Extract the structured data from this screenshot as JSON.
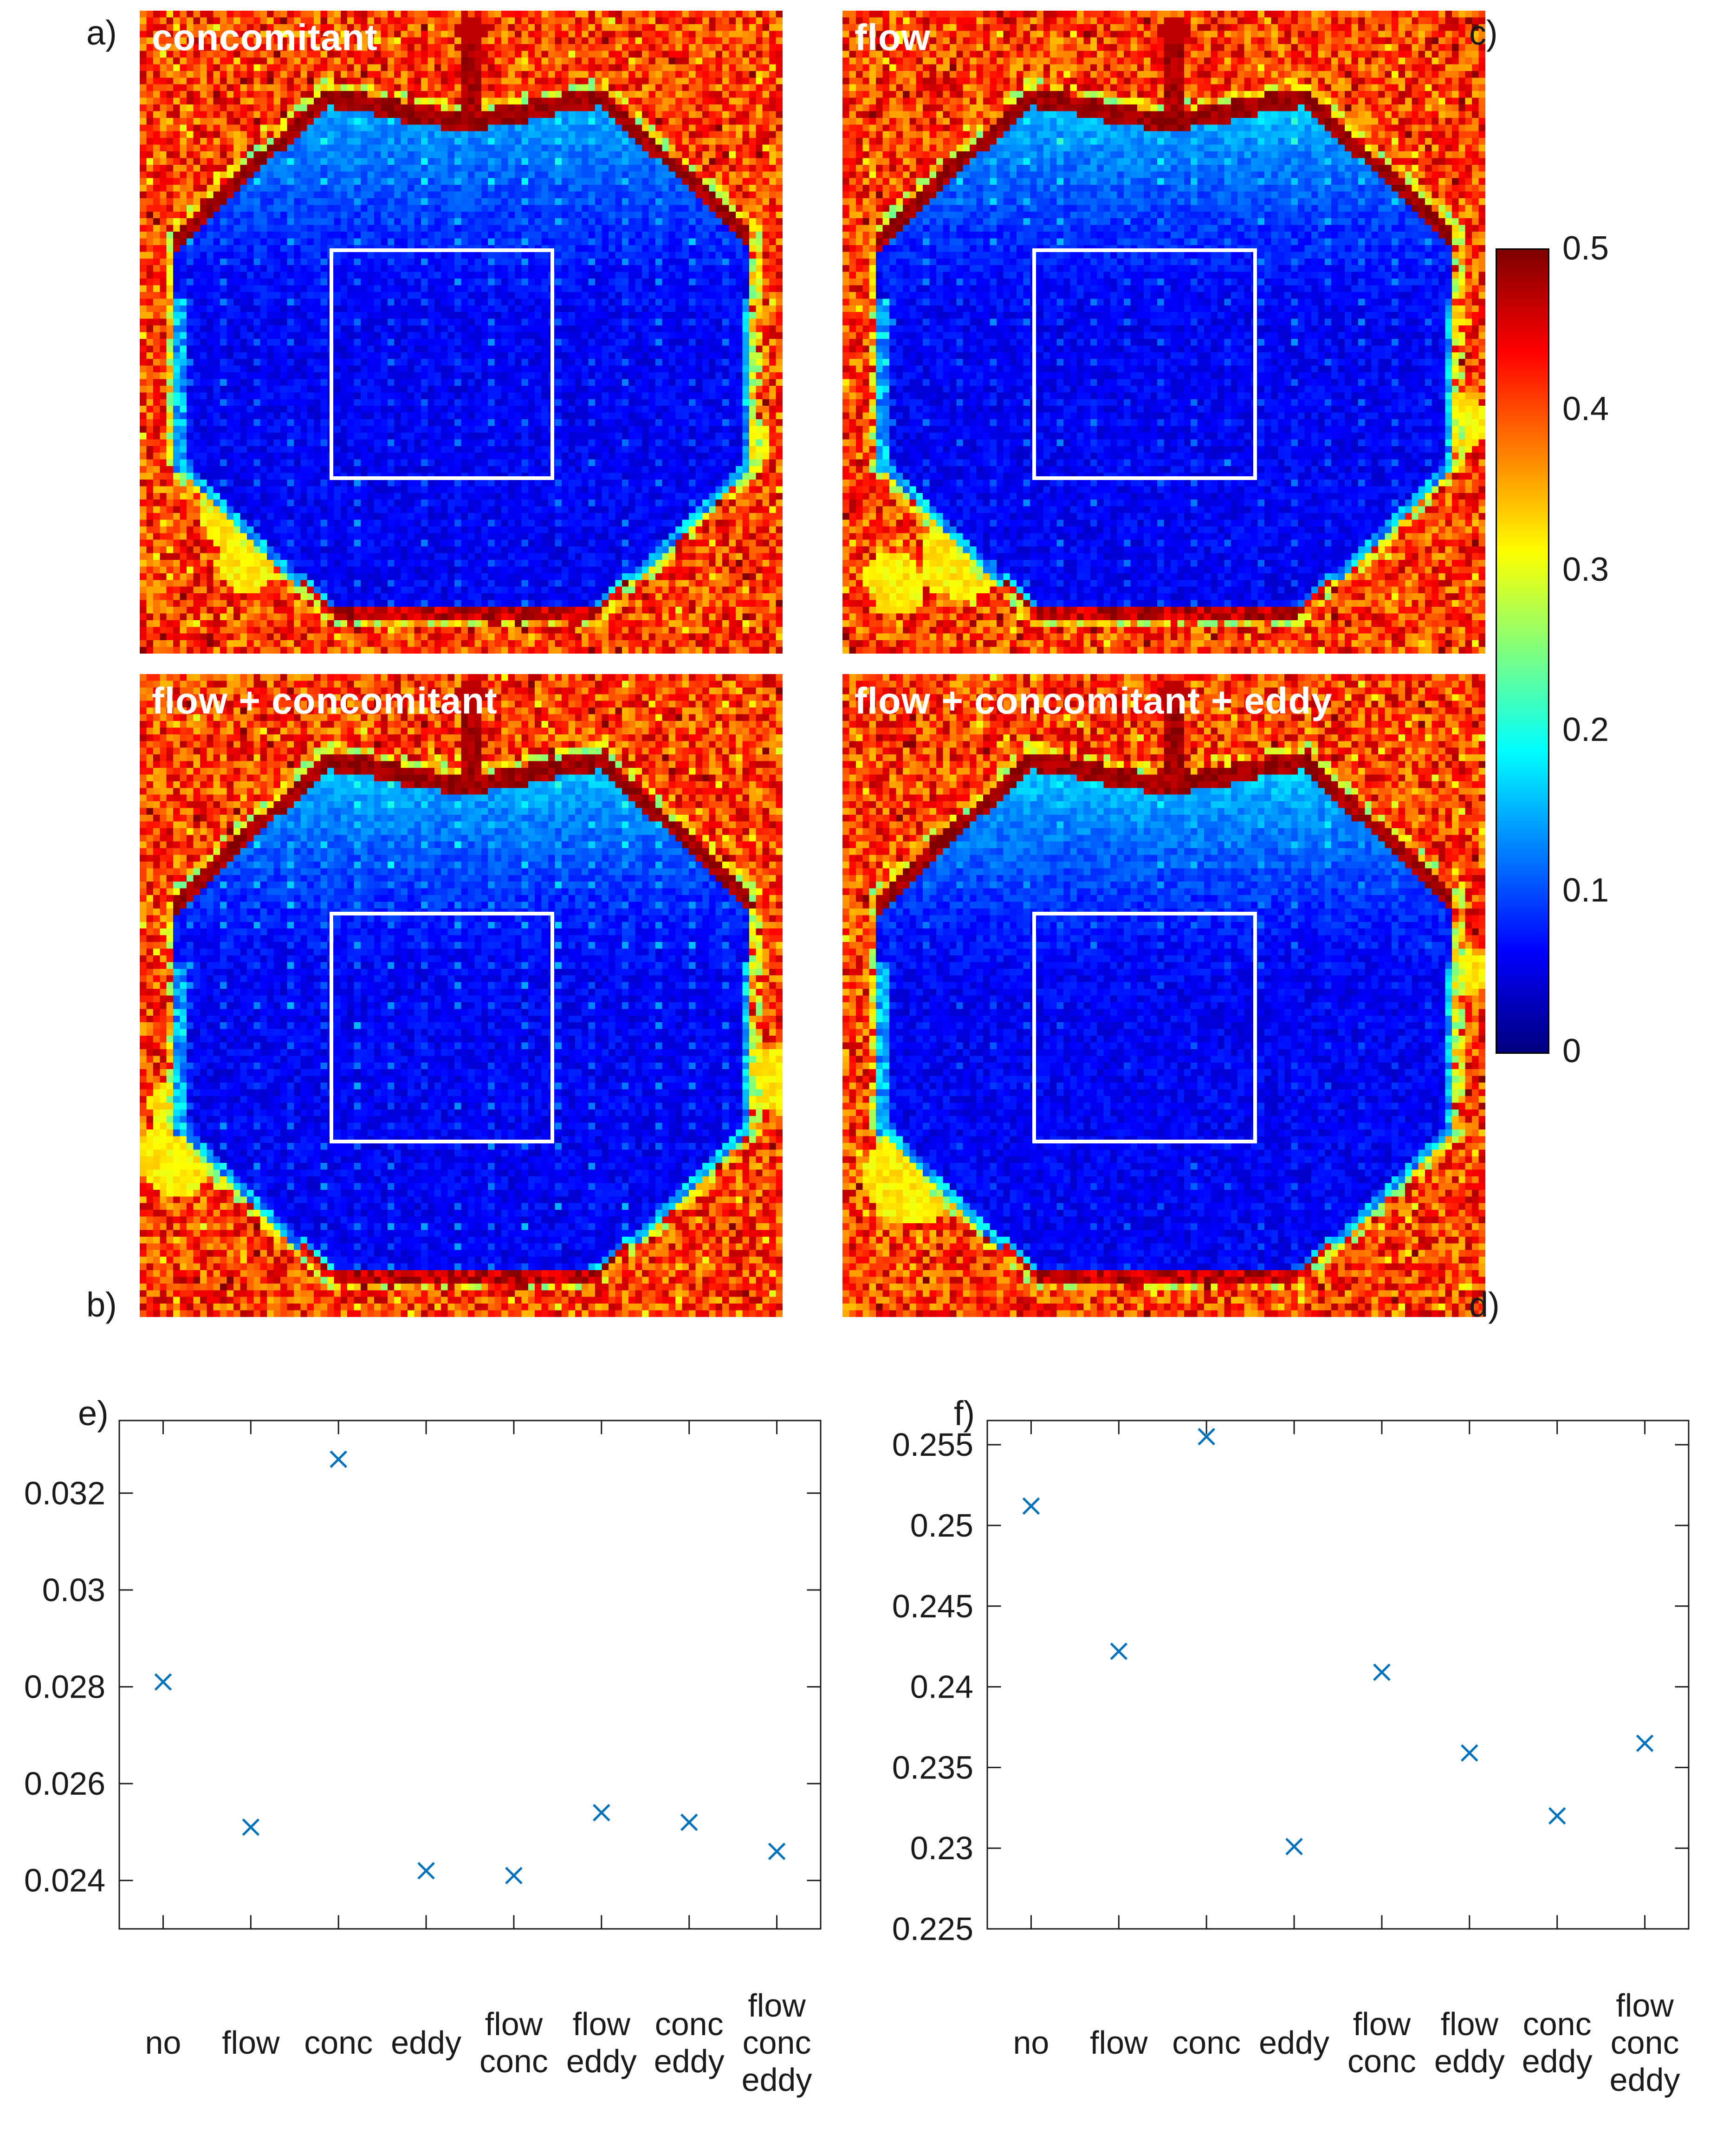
{
  "figure": {
    "heatmap_panels": [
      {
        "letter": "a)",
        "label": "concomitant"
      },
      {
        "letter": "c)",
        "label": "flow"
      },
      {
        "letter": "b)",
        "label": "flow + concomitant"
      },
      {
        "letter": "d)",
        "label": "flow + concomitant + eddy"
      }
    ],
    "colorbar": {
      "min": 0,
      "max": 0.5,
      "colormap": "jet",
      "tick_values": [
        0,
        0.1,
        0.2,
        0.3,
        0.4,
        0.5
      ],
      "tick_labels": [
        "0",
        "0.1",
        "0.2",
        "0.3",
        "0.4",
        "0.5"
      ]
    }
  },
  "chart_data": [
    {
      "type": "heatmap",
      "panels": [
        "concomitant",
        "flow",
        "flow + concomitant",
        "flow + concomitant + eddy"
      ],
      "panel_letters": [
        "a)",
        "c)",
        "b)",
        "d)"
      ],
      "value_range": [
        0,
        0.5
      ],
      "colormap": "jet",
      "annotation": "white square ROI outline centered in each phantom"
    },
    {
      "type": "scatter",
      "panel_letter": "e)",
      "marker": "x",
      "marker_color": "#0072BD",
      "categories": [
        [
          "no"
        ],
        [
          "flow"
        ],
        [
          "conc"
        ],
        [
          "eddy"
        ],
        [
          "flow",
          "conc"
        ],
        [
          "flow",
          "eddy"
        ],
        [
          "conc",
          "eddy"
        ],
        [
          "flow",
          "conc",
          "eddy"
        ]
      ],
      "values": [
        0.0281,
        0.0251,
        0.0327,
        0.0242,
        0.0241,
        0.0254,
        0.0252,
        0.0246
      ],
      "ylim": [
        0.023,
        0.0335
      ],
      "ytick_values": [
        0.024,
        0.026,
        0.028,
        0.03,
        0.032
      ],
      "ytick_labels": [
        "0.024",
        "0.026",
        "0.028",
        "0.03",
        "0.032"
      ],
      "grid": false,
      "legend": null
    },
    {
      "type": "scatter",
      "panel_letter": "f)",
      "marker": "x",
      "marker_color": "#0072BD",
      "categories": [
        [
          "no"
        ],
        [
          "flow"
        ],
        [
          "conc"
        ],
        [
          "eddy"
        ],
        [
          "flow",
          "conc"
        ],
        [
          "flow",
          "eddy"
        ],
        [
          "conc",
          "eddy"
        ],
        [
          "flow",
          "conc",
          "eddy"
        ]
      ],
      "values": [
        0.2512,
        0.2422,
        0.2555,
        0.2301,
        0.2409,
        0.2359,
        0.232,
        0.2365
      ],
      "ylim": [
        0.225,
        0.2565
      ],
      "ytick_values": [
        0.225,
        0.23,
        0.235,
        0.24,
        0.245,
        0.25,
        0.255
      ],
      "ytick_labels": [
        "0.225",
        "0.23",
        "0.235",
        "0.24",
        "0.245",
        "0.25",
        "0.255"
      ],
      "grid": false,
      "legend": null
    }
  ]
}
